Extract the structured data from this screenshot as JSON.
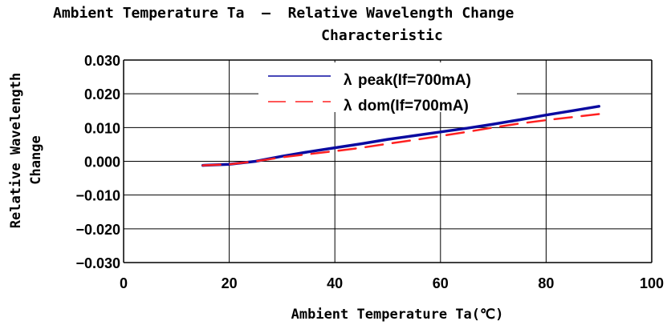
{
  "chart_data": {
    "type": "line",
    "title_line1": "Ambient Temperature Ta  –  Relative Wavelength Change",
    "title_line2": "Characteristic",
    "xlabel": "Ambient Temperature Ta(℃)",
    "ylabel_line1": "Relative Wavelength",
    "ylabel_line2": "Change",
    "xlim": [
      0,
      100
    ],
    "ylim": [
      -0.03,
      0.03
    ],
    "xticks": [
      "0",
      "20",
      "40",
      "60",
      "80",
      "100"
    ],
    "yticks": [
      "0.030",
      "0.020",
      "0.010",
      "0.000",
      "−0.010",
      "−0.020",
      "−0.030"
    ],
    "grid": true,
    "legend_position": "top-center",
    "series": [
      {
        "name": "λpeak(If=700mA)",
        "legend_symbol": "λ",
        "legend_label": "peak(If=700mA)",
        "color": "#0a0aa0",
        "style": "solid",
        "x": [
          15,
          20,
          25,
          30,
          35,
          40,
          45,
          50,
          55,
          60,
          65,
          70,
          75,
          80,
          85,
          90
        ],
        "y": [
          -0.0012,
          -0.0009,
          0.0,
          0.0015,
          0.0028,
          0.004,
          0.0052,
          0.0065,
          0.0076,
          0.0087,
          0.0098,
          0.011,
          0.0123,
          0.0137,
          0.015,
          0.0163
        ]
      },
      {
        "name": "λdom(If=700mA)",
        "legend_symbol": "λ",
        "legend_label": "dom(If=700mA)",
        "color": "#ff2020",
        "style": "dashed",
        "x": [
          15,
          20,
          25,
          30,
          35,
          40,
          45,
          50,
          55,
          60,
          65,
          70,
          75,
          80,
          85,
          90
        ],
        "y": [
          -0.0012,
          -0.0009,
          0.0,
          0.0012,
          0.0021,
          0.003,
          0.004,
          0.0052,
          0.0063,
          0.0075,
          0.0087,
          0.01,
          0.0112,
          0.0122,
          0.0131,
          0.014
        ]
      }
    ]
  }
}
